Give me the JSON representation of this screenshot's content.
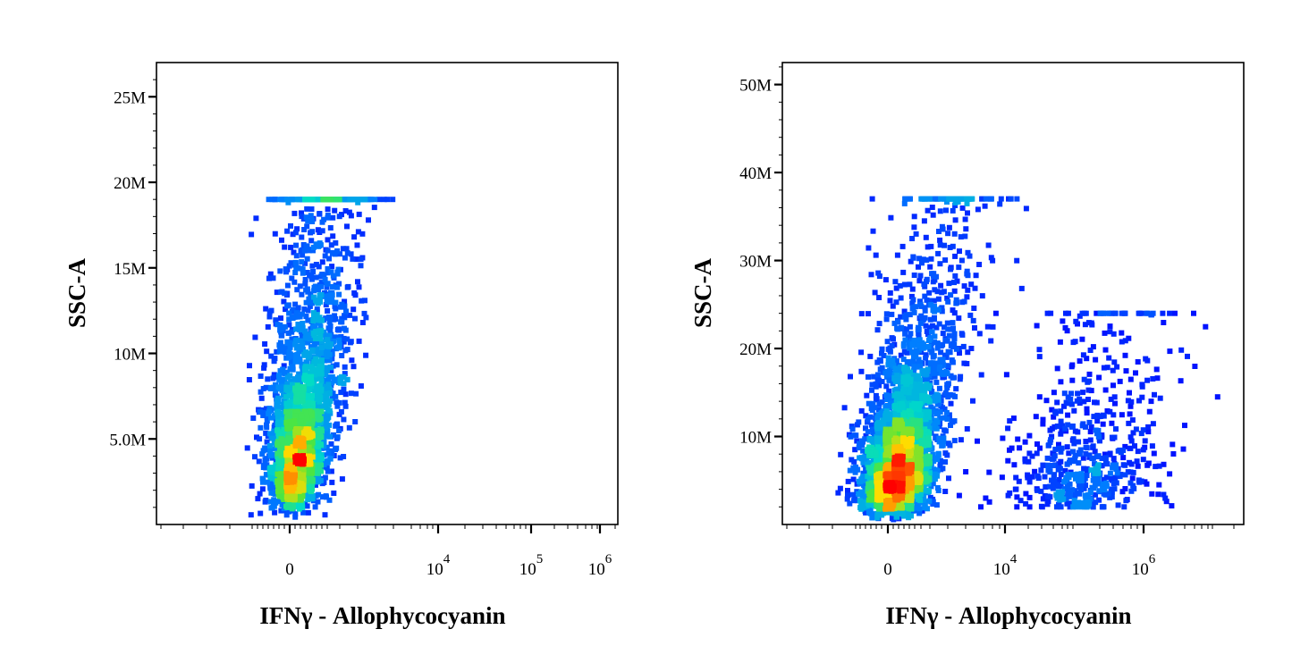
{
  "chart_data": [
    {
      "type": "scatter",
      "xlabel": "IFNγ - Allophycocyanin",
      "ylabel": "SSC-A",
      "x_scale": "biexponential",
      "y_ticks": [
        {
          "value": 5000000,
          "label": "5.0M"
        },
        {
          "value": 10000000,
          "label": "10M"
        },
        {
          "value": 15000000,
          "label": "15M"
        },
        {
          "value": 20000000,
          "label": "20M"
        },
        {
          "value": 25000000,
          "label": "25M"
        }
      ],
      "ylim": [
        0,
        27000000
      ],
      "x_ticks": [
        {
          "value": "0",
          "base": "0",
          "exp": ""
        },
        {
          "value": "10^4",
          "base": "10",
          "exp": "4"
        },
        {
          "value": "10^5",
          "base": "10",
          "exp": "5"
        },
        {
          "value": "10^6",
          "base": "10",
          "exp": "6"
        }
      ],
      "populations": [
        {
          "x_center": "0",
          "y_center": 6000000,
          "y_range": [
            200000,
            19000000
          ],
          "count": 2500
        }
      ],
      "grid": false
    },
    {
      "type": "scatter",
      "xlabel": "IFNγ - Allophycocyanin",
      "ylabel": "SSC-A",
      "x_scale": "biexponential",
      "y_ticks": [
        {
          "value": 10000000,
          "label": "10M"
        },
        {
          "value": 20000000,
          "label": "20M"
        },
        {
          "value": 30000000,
          "label": "30M"
        },
        {
          "value": 40000000,
          "label": "40M"
        },
        {
          "value": 50000000,
          "label": "50M"
        }
      ],
      "ylim": [
        0,
        52500000
      ],
      "x_ticks": [
        {
          "value": "0",
          "base": "0",
          "exp": ""
        },
        {
          "value": "10^4",
          "base": "10",
          "exp": "4"
        },
        {
          "value": "10^6",
          "base": "10",
          "exp": "6"
        }
      ],
      "populations": [
        {
          "x_center": "0",
          "y_center": 8000000,
          "y_range": [
            500000,
            37000000
          ],
          "count": 3200
        },
        {
          "x_center": "10^5",
          "y_center": 8000000,
          "y_range": [
            2000000,
            24000000
          ],
          "count": 600
        }
      ],
      "grid": false
    }
  ]
}
